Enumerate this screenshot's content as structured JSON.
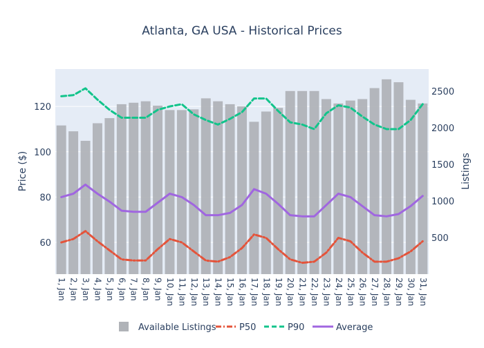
{
  "chart_data": {
    "type": "bar+line",
    "title": "Atlanta, GA USA - Historical Prices",
    "ylabel_left": "Price ($)",
    "ylabel_right": "Listings",
    "categories": [
      "1, Jan",
      "2, Jan",
      "3, Jan",
      "4, Jan",
      "5, Jan",
      "6, Jan",
      "7, Jan",
      "8, Jan",
      "9, Jan",
      "10, Jan",
      "11, Jan",
      "12, Jan",
      "13, Jan",
      "14, Jan",
      "15, Jan",
      "16, Jan",
      "17, Jan",
      "18, Jan",
      "19, Jan",
      "20, Jan",
      "21, Jan",
      "22, Jan",
      "23, Jan",
      "24, Jan",
      "25, Jan",
      "26, Jan",
      "27, Jan",
      "28, Jan",
      "29, Jan",
      "30, Jan",
      "31, Jan"
    ],
    "ylim_left": [
      46,
      136.5
    ],
    "ylim_right": [
      0,
      2800
    ],
    "yticks_left": [
      60,
      80,
      100,
      120
    ],
    "yticks_right": [
      500,
      1000,
      1500,
      2000,
      2500
    ],
    "legend_position": "bottom",
    "series": [
      {
        "name": "Available Listings",
        "kind": "bar",
        "axis": "right",
        "color": "#b0b3b8",
        "values": [
          2030,
          1950,
          1820,
          2060,
          2130,
          2320,
          2340,
          2360,
          2300,
          2240,
          2240,
          2250,
          2400,
          2360,
          2320,
          2290,
          2080,
          2220,
          2270,
          2500,
          2500,
          2500,
          2390,
          2330,
          2370,
          2390,
          2540,
          2660,
          2620,
          2380,
          2330
        ]
      },
      {
        "name": "P50",
        "kind": "line",
        "axis": "left",
        "color": "#e4533a",
        "dash": "dashdot",
        "values": [
          60,
          61.5,
          65,
          60.5,
          56.5,
          52.5,
          52,
          52,
          57,
          61.5,
          60,
          56,
          52,
          51.5,
          53.5,
          57.5,
          63.5,
          62,
          57,
          52.5,
          51,
          51.5,
          55.5,
          62,
          60.5,
          55.5,
          51.5,
          51.5,
          53,
          56,
          60.5
        ]
      },
      {
        "name": "P90",
        "kind": "line",
        "axis": "left",
        "color": "#12c48b",
        "dash": "dash",
        "values": [
          124.5,
          125,
          128,
          123,
          118.5,
          115,
          115,
          115,
          118.5,
          120,
          121,
          116.5,
          114,
          112,
          114.5,
          117.5,
          123.5,
          123.5,
          118,
          113,
          112,
          110,
          117,
          120.5,
          119.5,
          115.5,
          112,
          110,
          110,
          114,
          121
        ]
      },
      {
        "name": "Average",
        "kind": "line",
        "axis": "left",
        "color": "#a066e0",
        "dash": "solid",
        "values": [
          80,
          81.5,
          85.5,
          81.5,
          78,
          74,
          73.5,
          73.5,
          77.5,
          81.5,
          80,
          76.5,
          72,
          72,
          73,
          76.5,
          83.5,
          81.5,
          77,
          72,
          71.5,
          71.5,
          76.5,
          81.5,
          80,
          76,
          72,
          71.5,
          72.5,
          76,
          80.5
        ]
      }
    ]
  }
}
